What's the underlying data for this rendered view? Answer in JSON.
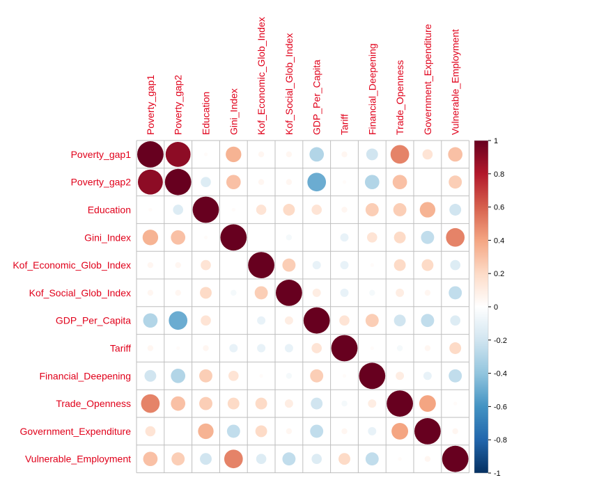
{
  "chart_data": {
    "type": "heatmap",
    "variables": [
      "Poverty_gap1",
      "Poverty_gap2",
      "Education",
      "Gini_Index",
      "Kof_Economic_Glob_Index",
      "Kof_Social_Glob_Index",
      "GDP_Per_Capita",
      "Tariff",
      "Financial_Deepening",
      "Trade_Openness",
      "Government_Expenditure",
      "Vulnerable_Employment"
    ],
    "matrix": [
      [
        1.0,
        0.9,
        0.02,
        0.35,
        0.05,
        0.05,
        -0.3,
        0.05,
        -0.2,
        0.5,
        0.15,
        0.3
      ],
      [
        0.9,
        1.0,
        -0.15,
        0.3,
        0.05,
        0.05,
        -0.5,
        0.02,
        -0.3,
        0.3,
        0.0,
        0.25
      ],
      [
        0.02,
        -0.15,
        1.0,
        0.02,
        0.15,
        0.2,
        0.15,
        0.05,
        0.25,
        0.25,
        0.35,
        -0.2
      ],
      [
        0.35,
        0.3,
        0.02,
        1.0,
        0.0,
        -0.05,
        0.0,
        -0.1,
        0.15,
        0.2,
        -0.25,
        0.5
      ],
      [
        0.05,
        0.05,
        0.15,
        0.0,
        1.0,
        0.25,
        -0.1,
        -0.1,
        0.02,
        0.2,
        0.2,
        -0.15
      ],
      [
        0.05,
        0.05,
        0.2,
        -0.05,
        0.25,
        1.0,
        0.1,
        -0.1,
        -0.05,
        0.1,
        0.05,
        -0.25
      ],
      [
        -0.3,
        -0.5,
        0.15,
        0.0,
        -0.1,
        0.1,
        1.0,
        0.15,
        0.25,
        -0.2,
        -0.25,
        -0.15
      ],
      [
        0.05,
        0.02,
        0.05,
        -0.1,
        -0.1,
        -0.1,
        0.15,
        1.0,
        0.02,
        -0.05,
        0.05,
        0.2
      ],
      [
        -0.2,
        -0.3,
        0.25,
        0.15,
        0.02,
        -0.05,
        0.25,
        0.02,
        1.0,
        0.1,
        -0.1,
        -0.25
      ],
      [
        0.5,
        0.3,
        0.25,
        0.2,
        0.2,
        0.1,
        -0.2,
        -0.05,
        0.1,
        1.0,
        0.4,
        0.02
      ],
      [
        0.15,
        0.0,
        0.35,
        -0.25,
        0.2,
        0.05,
        -0.25,
        0.05,
        -0.1,
        0.4,
        1.0,
        0.05
      ],
      [
        0.3,
        0.25,
        -0.2,
        0.5,
        -0.15,
        -0.25,
        -0.15,
        0.2,
        -0.25,
        0.02,
        0.05,
        1.0
      ]
    ],
    "colorbar": {
      "ticks": [
        1,
        0.8,
        0.6,
        0.4,
        0.2,
        0,
        -0.2,
        -0.4,
        -0.6,
        -0.8,
        -1
      ],
      "tick_labels": [
        "1",
        "0.8",
        "0.6",
        "0.4",
        "0.2",
        "0",
        "-0.2",
        "-0.4",
        "-0.6",
        "-0.8",
        "-1"
      ],
      "colors": [
        "#67001f",
        "#b2182b",
        "#d6604d",
        "#f4a582",
        "#fddbc7",
        "#ffffff",
        "#d1e5f0",
        "#92c5de",
        "#4393c3",
        "#2166ac",
        "#053061"
      ]
    },
    "grid": true,
    "label_color": "#e0001a",
    "grid_color": "#bebebe"
  }
}
